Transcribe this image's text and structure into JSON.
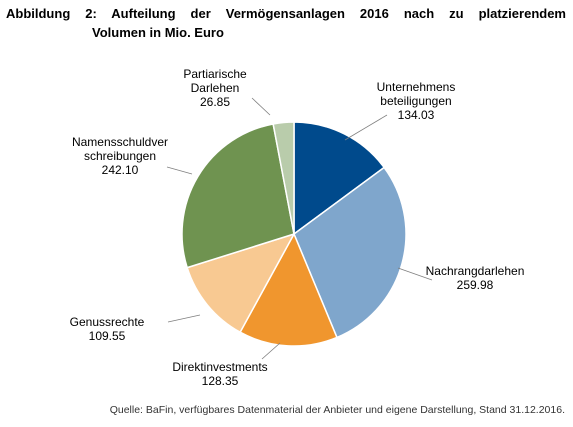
{
  "figure": {
    "title_line1": "Abbildung 2: Aufteilung der Vermögensanlagen 2016 nach zu platzierendem",
    "title_line2": "Volumen in Mio. Euro",
    "source": "Quelle: BaFin, verfügbares Datenmaterial der Anbieter und eigene Darstellung, Stand 31.12.2016."
  },
  "chart_data": {
    "type": "pie",
    "title": "Abbildung 2: Aufteilung der Vermögensanlagen 2016 nach zu platzierendem Volumen in Mio. Euro",
    "start_angle_deg": 0,
    "direction": "clockwise",
    "slices": [
      {
        "label_lines": [
          "Unternehmens",
          "beteiligungen"
        ],
        "value": 134.03,
        "value_text": "134.03",
        "color": "#004a8c"
      },
      {
        "label_lines": [
          "Nachrangdarlehen"
        ],
        "value": 259.98,
        "value_text": "259.98",
        "color": "#7fa6cc"
      },
      {
        "label_lines": [
          "Direktinvestments"
        ],
        "value": 128.35,
        "value_text": "128.35",
        "color": "#f0962e"
      },
      {
        "label_lines": [
          "Genussrechte"
        ],
        "value": 109.55,
        "value_text": "109.55",
        "color": "#f8c992"
      },
      {
        "label_lines": [
          "Namensschuldver",
          "schreibungen"
        ],
        "value": 242.1,
        "value_text": "242.10",
        "color": "#6f9350"
      },
      {
        "label_lines": [
          "Partiarische",
          "Darlehen"
        ],
        "value": 26.85,
        "value_text": "26.85",
        "color": "#b9ccab"
      }
    ],
    "legend": "none"
  }
}
